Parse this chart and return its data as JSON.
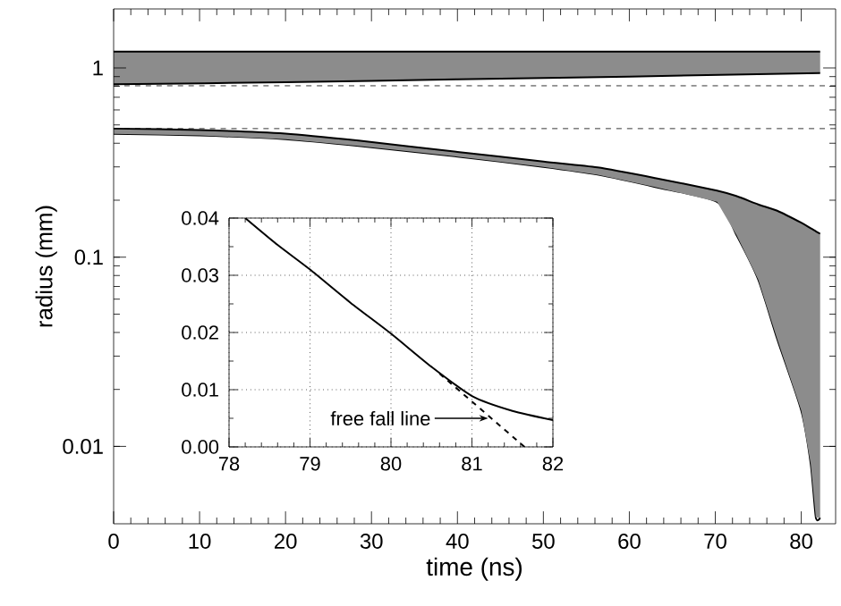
{
  "chart_data": [
    {
      "type": "line",
      "xlabel": "time (ns)",
      "ylabel": "radius (mm)",
      "log": "y",
      "xlim": [
        0,
        84
      ],
      "ylim": [
        0.0039,
        2.05
      ],
      "xticks": [
        0,
        10,
        20,
        30,
        40,
        50,
        60,
        70,
        80
      ],
      "yticks": [
        0.01,
        0.1,
        1
      ],
      "ref_lines": [
        {
          "axis": "y",
          "value": 0.805,
          "line_style": "dashed"
        },
        {
          "axis": "y",
          "value": 0.478,
          "line_style": "dashed"
        }
      ],
      "series": [
        {
          "color": "#000000",
          "x": [
            0,
            20,
            40,
            60,
            82.2
          ],
          "values": [
            1.22,
            1.22,
            1.22,
            1.22,
            1.22
          ],
          "upper": [
            1.22,
            1.22,
            1.22,
            1.22,
            1.22
          ],
          "lower": [
            0.82,
            0.84,
            0.87,
            0.9,
            0.94
          ]
        },
        {
          "color": "#000000",
          "x": [
            0,
            20,
            40,
            60,
            82.2
          ],
          "values": [
            0.82,
            0.84,
            0.87,
            0.9,
            0.94
          ]
        },
        {
          "color": "#000000",
          "x": [
            0,
            10,
            20,
            28.5,
            40,
            50,
            56.3,
            63,
            70.2,
            72.5,
            75,
            77.2,
            80,
            81.1,
            81.7,
            82.2
          ],
          "values": [
            0.448,
            0.44,
            0.42,
            0.387,
            0.34,
            0.3,
            0.273,
            0.235,
            0.196,
            0.13,
            0.076,
            0.037,
            0.0155,
            0.0081,
            0.0042,
            0.0042
          ]
        },
        {
          "color": "#000000",
          "x": [
            0,
            10,
            20,
            28.5,
            40,
            50,
            56.3,
            63,
            70.2,
            72.5,
            75,
            77.2,
            80,
            81.1,
            81.7,
            82.2
          ],
          "values": [
            0.478,
            0.47,
            0.45,
            0.413,
            0.36,
            0.32,
            0.298,
            0.262,
            0.225,
            0.21,
            0.19,
            0.176,
            0.152,
            0.142,
            0.137,
            0.133
          ],
          "upper": [
            0.478,
            0.47,
            0.45,
            0.413,
            0.36,
            0.32,
            0.298,
            0.262,
            0.225,
            0.21,
            0.19,
            0.176,
            0.152,
            0.142,
            0.137,
            0.133
          ],
          "lower": [
            0.448,
            0.44,
            0.42,
            0.387,
            0.34,
            0.3,
            0.273,
            0.235,
            0.196,
            0.13,
            0.076,
            0.037,
            0.0155,
            0.0081,
            0.0042,
            0.0042
          ]
        }
      ]
    },
    {
      "type": "line",
      "xlim": [
        78,
        82
      ],
      "ylim": [
        0,
        0.04
      ],
      "xticks": [
        78,
        79,
        80,
        81,
        82
      ],
      "grid": true,
      "yticks": [
        {
          "value": 0,
          "label": "0.00"
        },
        {
          "value": 0.01,
          "label": "0.01"
        },
        {
          "value": 0.02,
          "label": "0.02"
        },
        {
          "value": 0.03,
          "label": "0.03"
        },
        {
          "value": 0.04,
          "label": "0.04"
        }
      ],
      "annotations": [
        {
          "text": "free fall line",
          "x": 81.2,
          "y": 0.005
        }
      ],
      "series": [
        {
          "color": "#000000",
          "line_style": "solid",
          "x": [
            78.2,
            78.6,
            79,
            79.5,
            80,
            80.5,
            81,
            81.5,
            82
          ],
          "values": [
            0.04,
            0.0353,
            0.031,
            0.0252,
            0.0198,
            0.014,
            0.0089,
            0.0063,
            0.0047
          ]
        },
        {
          "color": "#000000",
          "line_style": "dashed",
          "x": [
            80.6,
            81.65
          ],
          "values": [
            0.0128,
            0.0
          ]
        }
      ]
    }
  ]
}
